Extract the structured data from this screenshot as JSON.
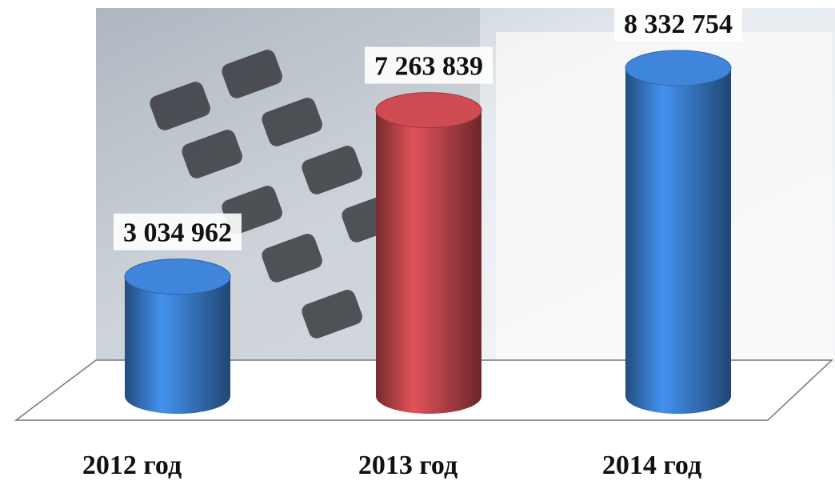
{
  "chart_data": {
    "type": "bar",
    "categories": [
      "2012 год",
      "2013 год",
      "2014 год"
    ],
    "values": [
      3034962,
      7263839,
      8332754
    ],
    "value_labels": [
      "3 034 962",
      "7 263 839",
      "8 332 754"
    ],
    "colors": [
      "#3b7fd1",
      "#c4474d",
      "#3b7fd1"
    ]
  }
}
